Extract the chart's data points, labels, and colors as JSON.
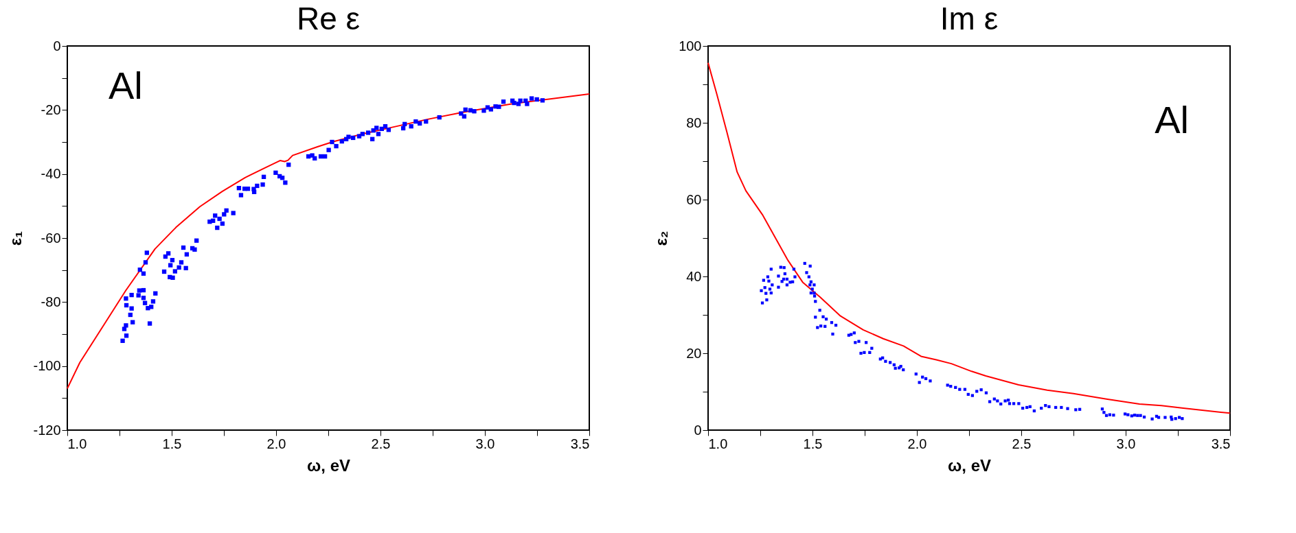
{
  "chart_data": [
    {
      "type": "scatter",
      "title": "Re ε",
      "xlabel": "ω, eV",
      "ylabel": "ε₁",
      "annotations": [
        "Al"
      ],
      "grid": false,
      "xlim": [
        1.0,
        3.5
      ],
      "ylim": [
        -120,
        0
      ],
      "xticks": [
        {
          "value": 1.0,
          "label": "1.0"
        },
        {
          "value": 1.25,
          "label": null
        },
        {
          "value": 1.5,
          "label": "1.5"
        },
        {
          "value": 1.75,
          "label": null
        },
        {
          "value": 2.0,
          "label": "2.0"
        },
        {
          "value": 2.25,
          "label": null
        },
        {
          "value": 2.5,
          "label": "2.5"
        },
        {
          "value": 2.75,
          "label": null
        },
        {
          "value": 3.0,
          "label": "3.0"
        },
        {
          "value": 3.25,
          "label": null
        },
        {
          "value": 3.5,
          "label": "3.5"
        }
      ],
      "yticks": [
        -120,
        {
          "value": -110,
          "label": null
        },
        -100,
        {
          "value": -90,
          "label": null
        },
        -80,
        {
          "value": -70,
          "label": null
        },
        -60,
        {
          "value": -50,
          "label": null
        },
        -40,
        {
          "value": -30,
          "label": null
        },
        -20,
        {
          "value": -10,
          "label": null
        },
        0
      ],
      "series": [
        {
          "type": "line",
          "color": "#ff0000",
          "marker": "none",
          "line_style": "solid",
          "x": [
            1.0,
            1.06,
            1.19,
            1.28,
            1.42,
            1.52,
            1.635,
            1.743,
            1.852,
            1.949,
            2.019,
            2.041,
            2.057,
            2.079,
            2.198,
            2.274,
            2.414,
            2.577,
            2.726,
            2.889,
            3.127,
            3.5
          ],
          "values": [
            -107,
            -98.9,
            -85.6,
            -76.4,
            -63.4,
            -56.7,
            -50.2,
            -45.4,
            -41.1,
            -38.0,
            -35.8,
            -36.1,
            -35.7,
            -34.2,
            -31.5,
            -29.9,
            -27.5,
            -25.1,
            -22.9,
            -20.8,
            -18.1,
            -15.0
          ]
        },
        {
          "type": "scatter",
          "color": "#0000ff",
          "marker": "square",
          "x": [
            1.265,
            1.273,
            1.283,
            1.281,
            1.313,
            1.302,
            1.308,
            1.283,
            1.281,
            1.308,
            1.341,
            1.345,
            1.365,
            1.365,
            1.372,
            1.386,
            1.402,
            1.411,
            1.422,
            1.395,
            1.348,
            1.365,
            1.375,
            1.381,
            1.464,
            1.47,
            1.484,
            1.494,
            1.503,
            1.491,
            1.505,
            1.516,
            1.535,
            1.546,
            1.556,
            1.568,
            1.572,
            1.599,
            1.61,
            1.619,
            1.682,
            1.698,
            1.708,
            1.718,
            1.729,
            1.743,
            1.751,
            1.762,
            1.795,
            1.822,
            1.832,
            1.849,
            1.865,
            1.893,
            1.895,
            1.909,
            1.936,
            1.941,
            1.998,
            2.017,
            2.03,
            2.044,
            2.06,
            2.155,
            2.173,
            2.185,
            2.214,
            2.234,
            2.252,
            2.268,
            2.288,
            2.315,
            2.336,
            2.347,
            2.369,
            2.398,
            2.414,
            2.441,
            2.461,
            2.466,
            2.481,
            2.49,
            2.506,
            2.523,
            2.539,
            2.609,
            2.616,
            2.647,
            2.669,
            2.688,
            2.718,
            2.782,
            2.886,
            2.901,
            2.907,
            2.931,
            2.949,
            2.995,
            3.013,
            3.029,
            3.051,
            3.067,
            3.089,
            3.132,
            3.14,
            3.161,
            3.17,
            3.195,
            3.202,
            3.224,
            3.249,
            3.276
          ],
          "values": [
            -92.1,
            -88.4,
            -90.5,
            -87.3,
            -86.3,
            -84.0,
            -82.0,
            -81.0,
            -78.9,
            -77.8,
            -77.9,
            -76.4,
            -76.3,
            -78.7,
            -80.3,
            -81.9,
            -81.5,
            -79.8,
            -77.3,
            -86.7,
            -69.9,
            -71.1,
            -67.6,
            -64.6,
            -70.5,
            -65.8,
            -64.8,
            -68.5,
            -66.9,
            -72.2,
            -72.4,
            -70.4,
            -69.2,
            -67.6,
            -63.0,
            -69.4,
            -65.1,
            -63.2,
            -63.6,
            -60.8,
            -54.9,
            -54.6,
            -53.0,
            -56.8,
            -54.0,
            -55.5,
            -52.6,
            -51.4,
            -52.2,
            -44.4,
            -46.6,
            -44.6,
            -44.6,
            -44.7,
            -45.6,
            -43.7,
            -43.3,
            -40.9,
            -39.6,
            -40.7,
            -41.2,
            -42.7,
            -37.1,
            -34.5,
            -34.2,
            -35.1,
            -34.5,
            -34.5,
            -32.5,
            -30.0,
            -31.3,
            -29.8,
            -29.1,
            -28.4,
            -28.7,
            -28.2,
            -27.5,
            -27.1,
            -29.1,
            -26.4,
            -25.6,
            -27.5,
            -25.9,
            -25.1,
            -26.2,
            -25.7,
            -24.4,
            -25.1,
            -23.6,
            -24.2,
            -23.6,
            -22.3,
            -21.1,
            -22.0,
            -19.9,
            -20.1,
            -20.4,
            -20.2,
            -19.2,
            -19.8,
            -18.9,
            -19.0,
            -17.4,
            -17.1,
            -17.8,
            -18.1,
            -17.1,
            -17.1,
            -18.1,
            -16.4,
            -16.7,
            -17.0
          ]
        }
      ]
    },
    {
      "type": "scatter",
      "title": "Im ε",
      "xlabel": "ω, eV",
      "ylabel": "ε₂",
      "annotations": [
        "Al"
      ],
      "grid": false,
      "xlim": [
        1.0,
        3.5
      ],
      "ylim": [
        0,
        100
      ],
      "xticks": [
        {
          "value": 1.0,
          "label": "1.0"
        },
        {
          "value": 1.25,
          "label": null
        },
        {
          "value": 1.5,
          "label": "1.5"
        },
        {
          "value": 1.75,
          "label": null
        },
        {
          "value": 2.0,
          "label": "2.0"
        },
        {
          "value": 2.25,
          "label": null
        },
        {
          "value": 2.5,
          "label": "2.5"
        },
        {
          "value": 2.75,
          "label": null
        },
        {
          "value": 3.0,
          "label": "3.0"
        },
        {
          "value": 3.25,
          "label": null
        },
        {
          "value": 3.5,
          "label": "3.5"
        }
      ],
      "yticks": [
        0,
        {
          "value": 10,
          "label": null
        },
        20,
        {
          "value": 30,
          "label": null
        },
        40,
        {
          "value": 50,
          "label": null
        },
        60,
        {
          "value": 70,
          "label": null
        },
        80,
        {
          "value": 90,
          "label": null
        },
        100
      ],
      "series": [
        {
          "type": "line",
          "color": "#ff0000",
          "marker": "none",
          "line_style": "solid",
          "x": [
            1.0,
            1.042,
            1.09,
            1.139,
            1.181,
            1.26,
            1.38,
            1.453,
            1.537,
            1.634,
            1.743,
            1.839,
            1.936,
            2.02,
            2.093,
            2.165,
            2.262,
            2.33,
            2.487,
            2.624,
            2.75,
            2.908,
            3.066,
            3.171,
            3.276,
            3.5
          ],
          "values": [
            95.6,
            87.4,
            77.6,
            67.2,
            62.3,
            56.1,
            44.4,
            38.5,
            34.6,
            29.7,
            26.1,
            23.8,
            21.9,
            19.2,
            18.3,
            17.3,
            15.3,
            14.1,
            11.8,
            10.4,
            9.5,
            8.1,
            6.8,
            6.4,
            5.7,
            4.4
          ]
        },
        {
          "type": "scatter",
          "color": "#0000ff",
          "marker": "square",
          "x": [
            1.26,
            1.255,
            1.272,
            1.277,
            1.281,
            1.266,
            1.286,
            1.291,
            1.296,
            1.302,
            1.307,
            1.302,
            1.337,
            1.337,
            1.348,
            1.364,
            1.354,
            1.368,
            1.362,
            1.378,
            1.378,
            1.393,
            1.405,
            1.411,
            1.416,
            1.463,
            1.489,
            1.472,
            1.483,
            1.493,
            1.488,
            1.508,
            1.499,
            1.493,
            1.508,
            1.51,
            1.514,
            1.535,
            1.514,
            1.551,
            1.566,
            1.524,
            1.54,
            1.56,
            1.592,
            1.612,
            1.597,
            1.674,
            1.685,
            1.7,
            1.705,
            1.722,
            1.757,
            1.732,
            1.748,
            1.774,
            1.784,
            1.825,
            1.836,
            1.85,
            1.872,
            1.891,
            1.897,
            1.915,
            1.923,
            1.935,
            1.996,
            2.012,
            2.027,
            2.043,
            2.064,
            2.147,
            2.162,
            2.185,
            2.205,
            2.23,
            2.246,
            2.266,
            2.287,
            2.308,
            2.332,
            2.349,
            2.371,
            2.386,
            2.402,
            2.423,
            2.438,
            2.444,
            2.464,
            2.488,
            2.507,
            2.527,
            2.542,
            2.562,
            2.596,
            2.616,
            2.633,
            2.665,
            2.692,
            2.722,
            2.761,
            2.78,
            2.888,
            2.896,
            2.908,
            2.924,
            2.942,
            2.997,
            3.011,
            3.029,
            3.043,
            3.057,
            3.071,
            3.089,
            3.127,
            3.148,
            3.158,
            3.189,
            3.218,
            3.221,
            3.239,
            3.257,
            3.271
          ],
          "values": [
            33.1,
            36.3,
            37.1,
            35.6,
            33.9,
            39.0,
            39.9,
            38.8,
            36.7,
            35.7,
            37.8,
            41.9,
            37.2,
            40.1,
            42.4,
            42.3,
            38.7,
            40.7,
            39.3,
            39.3,
            37.8,
            38.5,
            38.6,
            41.9,
            39.9,
            43.4,
            42.7,
            41.0,
            39.9,
            38.6,
            37.8,
            37.8,
            36.7,
            35.7,
            35.7,
            34.9,
            33.5,
            31.2,
            29.4,
            29.5,
            28.9,
            26.7,
            27.1,
            27.0,
            28.0,
            27.3,
            25.0,
            24.7,
            24.9,
            25.3,
            22.8,
            23.1,
            22.8,
            20.0,
            20.2,
            20.2,
            21.3,
            18.5,
            18.8,
            17.9,
            17.6,
            17.0,
            16.1,
            16.2,
            16.6,
            15.7,
            14.6,
            12.4,
            13.8,
            13.4,
            12.8,
            11.7,
            11.4,
            11.1,
            10.6,
            10.6,
            9.3,
            9.0,
            10.1,
            10.5,
            9.7,
            7.4,
            8.1,
            7.6,
            6.8,
            7.6,
            7.8,
            6.9,
            6.9,
            6.9,
            5.7,
            5.9,
            6.1,
            5.0,
            5.7,
            6.4,
            6.1,
            5.9,
            5.9,
            5.6,
            5.3,
            5.4,
            5.5,
            4.6,
            3.8,
            4.0,
            3.9,
            4.2,
            4.0,
            3.7,
            3.9,
            3.8,
            3.8,
            3.4,
            2.9,
            3.6,
            3.3,
            3.3,
            3.4,
            2.8,
            3.0,
            3.3,
            3.0
          ]
        }
      ]
    }
  ]
}
